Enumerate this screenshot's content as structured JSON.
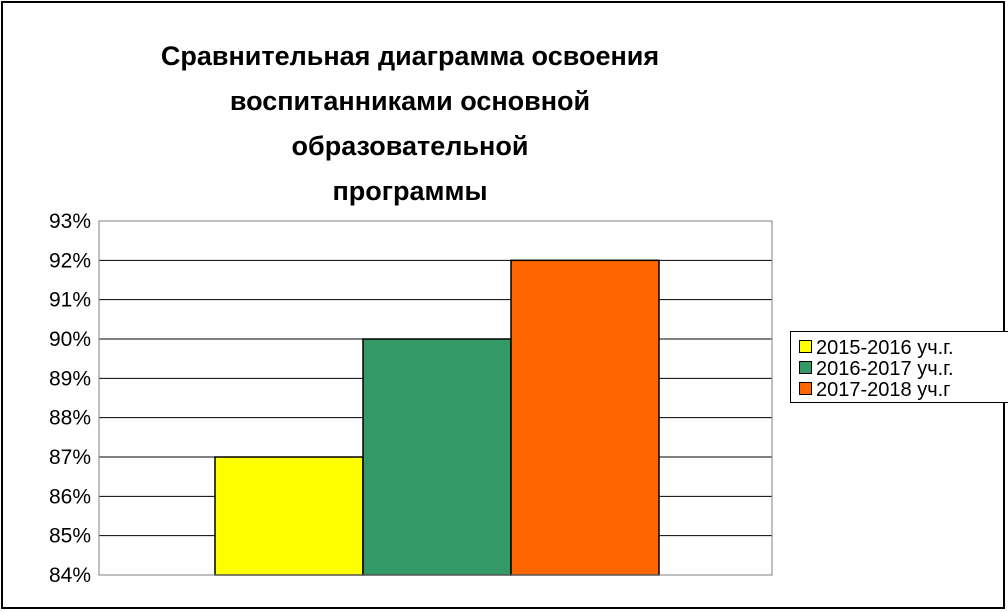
{
  "chart_data": {
    "type": "bar",
    "title": "Сравнительная  диаграмма  освоения\nвоспитанниками основной образовательной\nпрограммы",
    "categories": [
      ""
    ],
    "series": [
      {
        "name": "2015-2016 уч.г.",
        "values": [
          0.87
        ],
        "color": "#FFFF00"
      },
      {
        "name": "2016-2017 уч.г.",
        "values": [
          0.9
        ],
        "color": "#339966"
      },
      {
        "name": "2017-2018 уч.г",
        "values": [
          0.92
        ],
        "color": "#FF6600"
      }
    ],
    "ylim": [
      0.84,
      0.93
    ],
    "yticks": [
      "84%",
      "85%",
      "86%",
      "87%",
      "88%",
      "89%",
      "90%",
      "91%",
      "92%",
      "93%"
    ],
    "grid": true,
    "legend_position": "right"
  }
}
